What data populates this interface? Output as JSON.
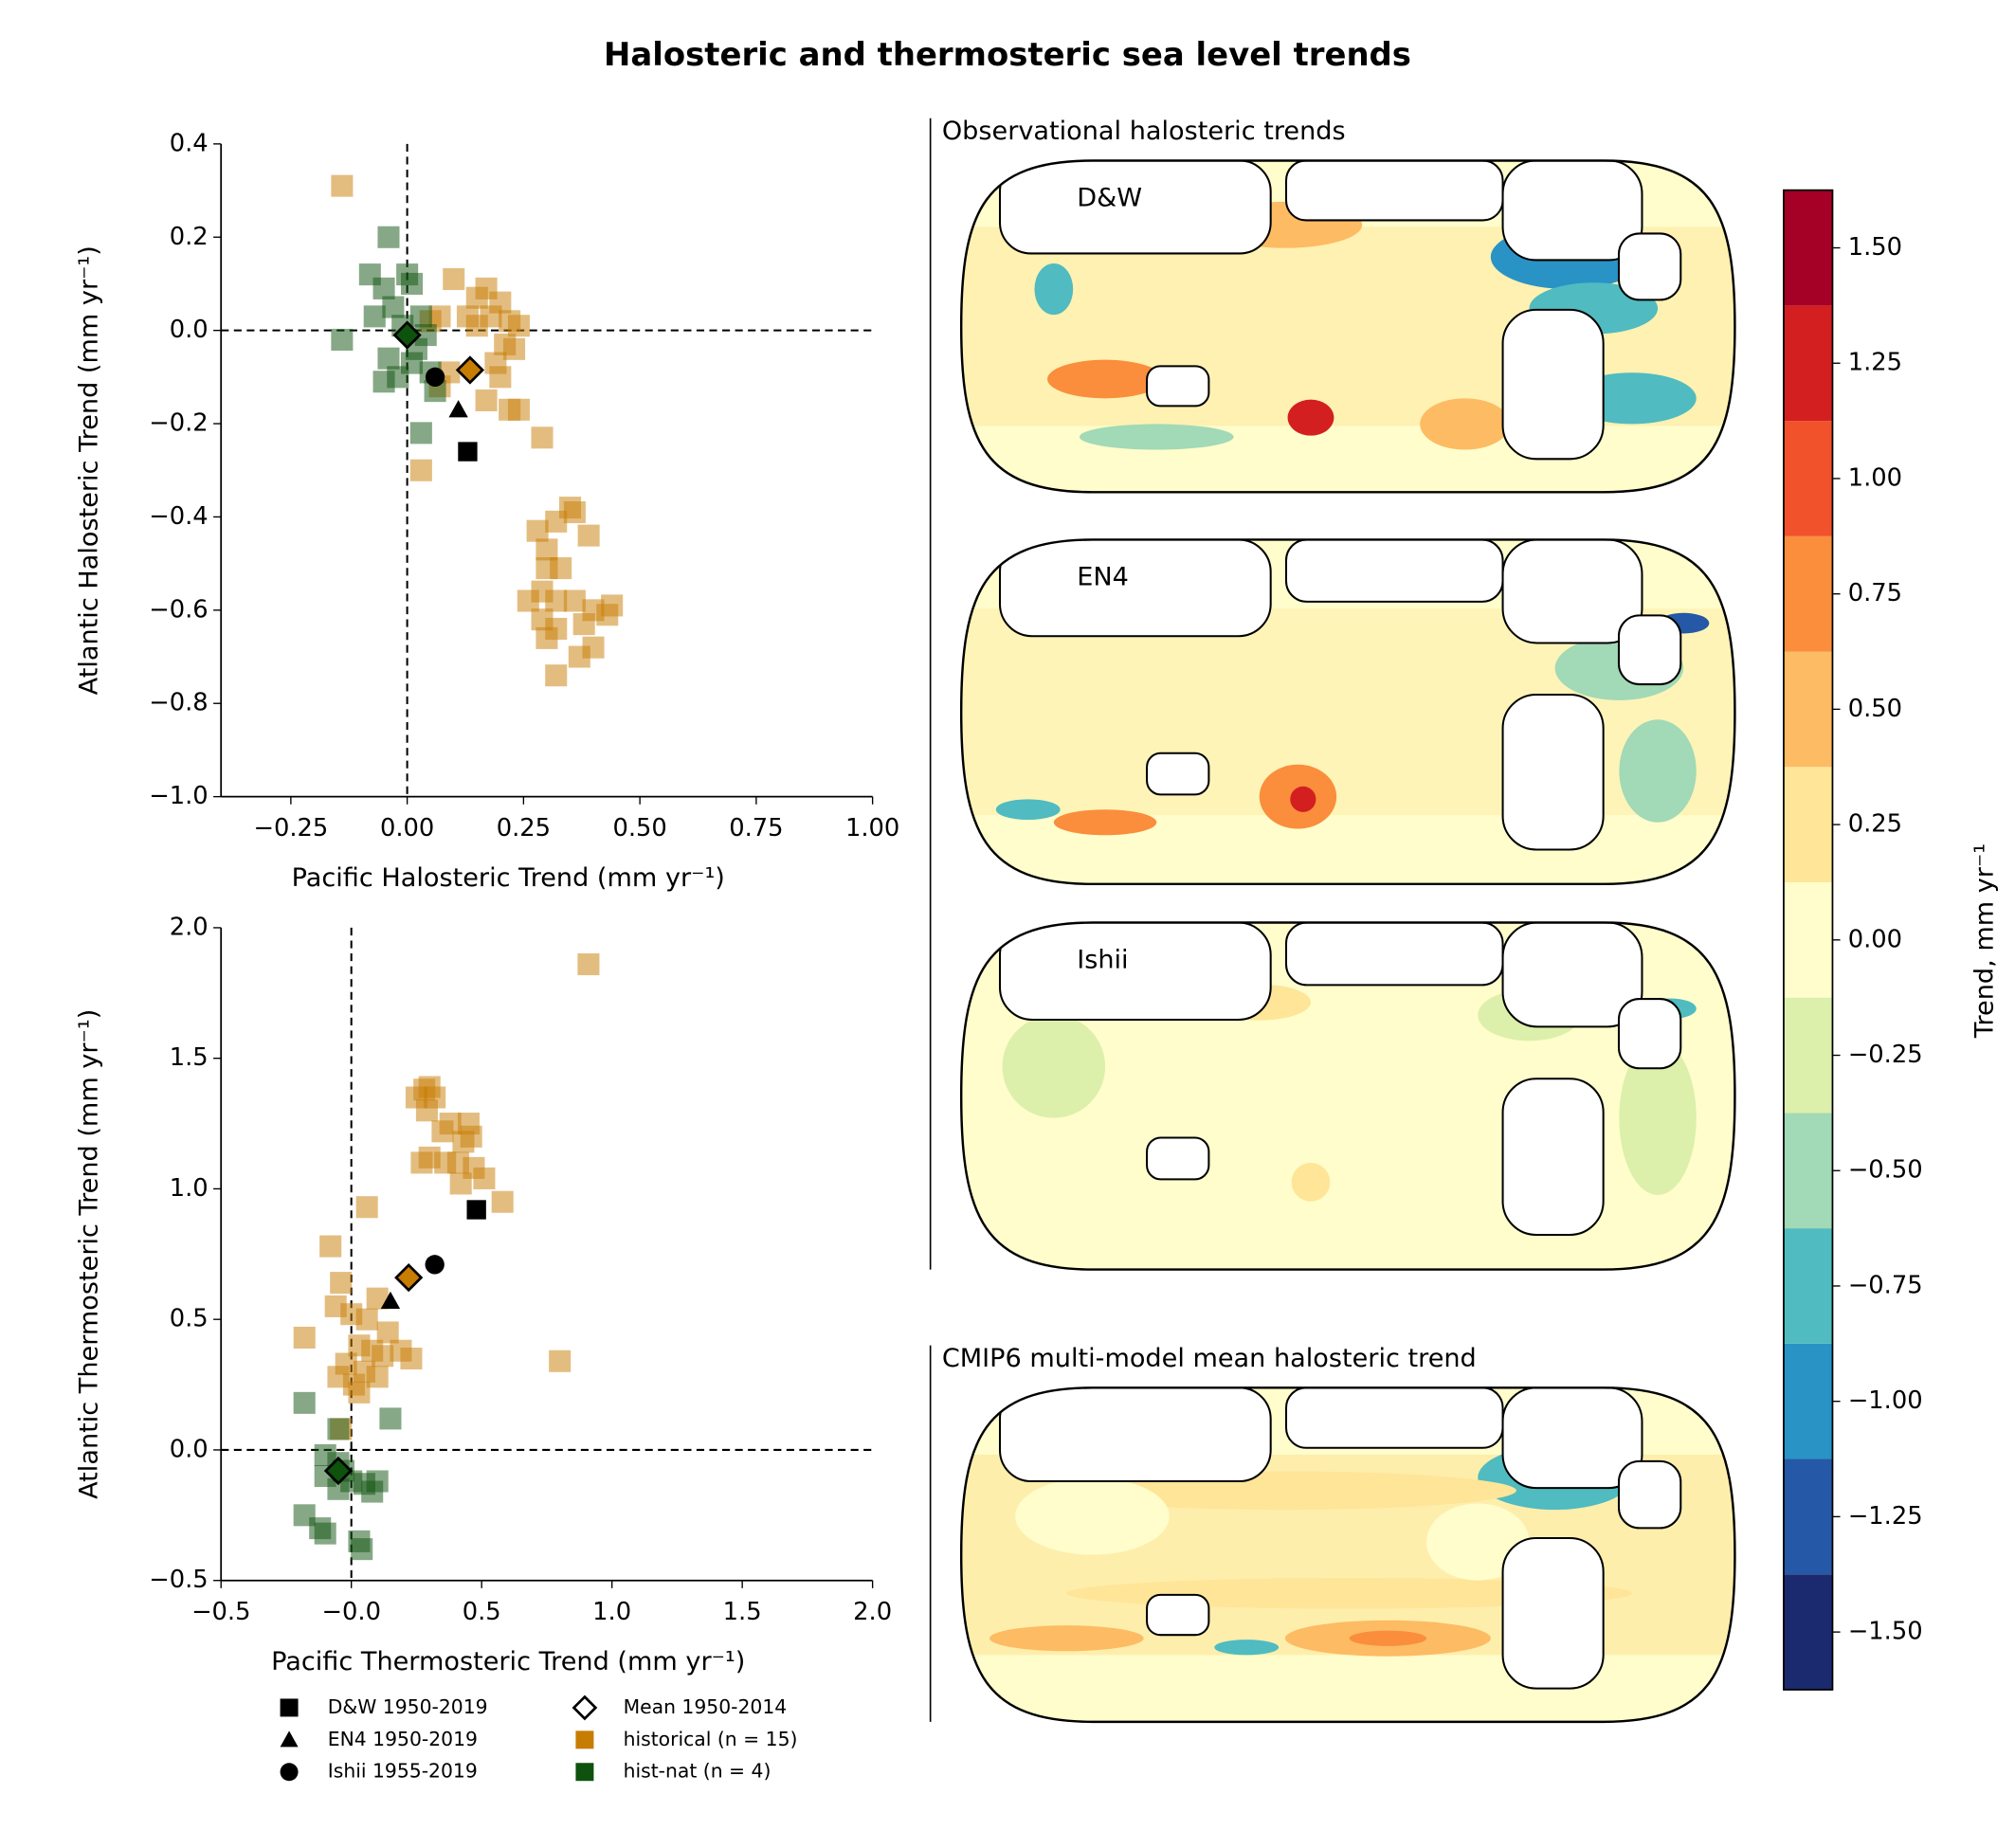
{
  "title": "Halosteric and thermosteric sea level trends",
  "maps": {
    "title_obs": "Observational halosteric trends",
    "title_model": "CMIP6 multi-model mean halosteric trend",
    "labels": [
      "D&W",
      "EN4",
      "Ishii"
    ]
  },
  "chart_data": [
    {
      "type": "scatter",
      "xlabel": "Pacific Halosteric Trend (mm yr⁻¹)",
      "ylabel": "Atlantic Halosteric Trend (mm yr⁻¹)",
      "xlim": [
        -0.4,
        1.0
      ],
      "ylim": [
        -1.0,
        0.4
      ],
      "xticks": [
        {
          "value": -0.25,
          "label": "−0.25"
        },
        {
          "value": 0,
          "label": "0.00"
        },
        {
          "value": 0.25,
          "label": "0.25"
        },
        {
          "value": 0.5,
          "label": "0.50"
        },
        {
          "value": 0.75,
          "label": "0.75"
        },
        {
          "value": 1.0,
          "label": "1.00"
        }
      ],
      "yticks": [
        {
          "value": 0.4,
          "label": "0.4"
        },
        {
          "value": 0.2,
          "label": "0.2"
        },
        {
          "value": 0,
          "label": "0.0"
        },
        {
          "value": -0.2,
          "label": "−0.2"
        },
        {
          "value": -0.4,
          "label": "−0.4"
        },
        {
          "value": -0.6,
          "label": "−0.6"
        },
        {
          "value": -0.8,
          "label": "−0.8"
        },
        {
          "value": -1.0,
          "label": "−1.0"
        }
      ],
      "refline_x": 0,
      "refline_y": 0,
      "series": [
        {
          "marker": "square",
          "color": "#000000",
          "x": [
            0.13
          ],
          "y": [
            -0.26
          ]
        },
        {
          "marker": "triangle",
          "color": "#000000",
          "x": [
            0.11
          ],
          "y": [
            -0.17
          ]
        },
        {
          "marker": "circle",
          "color": "#000000",
          "x": [
            0.06
          ],
          "y": [
            -0.1
          ]
        },
        {
          "marker": "diamond",
          "color": "#ffffff",
          "point_colors": [
            "#c77c02",
            "#0d520d"
          ],
          "x": [
            0.135,
            0.0
          ],
          "y": [
            -0.085,
            -0.01
          ]
        },
        {
          "marker": "square",
          "color": "#c77c02",
          "alpha": 0.5,
          "x": [
            -0.14,
            0.1,
            0.15,
            0.17,
            0.2,
            0.13,
            0.18,
            0.07,
            0.05,
            0.22,
            0.24,
            0.15,
            0.21,
            0.23,
            0.19,
            0.2,
            0.09,
            0.07,
            0.17,
            0.22,
            0.24,
            0.29,
            0.03,
            0.28,
            0.32,
            0.35,
            0.36,
            0.3,
            0.39,
            0.3,
            0.33,
            0.26,
            0.29,
            0.32,
            0.36,
            0.4,
            0.43,
            0.44,
            0.29,
            0.32,
            0.38,
            0.4,
            0.37,
            0.32,
            0.3
          ],
          "y": [
            0.31,
            0.11,
            0.07,
            0.09,
            0.06,
            0.03,
            0.03,
            0.03,
            0.02,
            0.02,
            0.01,
            0.01,
            -0.03,
            -0.04,
            -0.07,
            -0.1,
            -0.09,
            -0.12,
            -0.15,
            -0.17,
            -0.17,
            -0.23,
            -0.3,
            -0.43,
            -0.41,
            -0.38,
            -0.39,
            -0.47,
            -0.44,
            -0.51,
            -0.51,
            -0.58,
            -0.56,
            -0.58,
            -0.58,
            -0.6,
            -0.61,
            -0.59,
            -0.62,
            -0.64,
            -0.63,
            -0.68,
            -0.7,
            -0.74,
            -0.66
          ]
        },
        {
          "marker": "square",
          "color": "#0d520d",
          "alpha": 0.5,
          "x": [
            -0.04,
            -0.08,
            0.0,
            0.01,
            -0.05,
            -0.03,
            -0.07,
            -0.14,
            0.03,
            -0.01,
            0.04,
            0.02,
            -0.04,
            0.01,
            -0.05,
            0.05,
            0.06,
            0.03,
            -0.02
          ],
          "y": [
            0.2,
            0.12,
            0.12,
            0.1,
            0.09,
            0.05,
            0.03,
            -0.02,
            0.03,
            0.01,
            -0.01,
            -0.04,
            -0.06,
            -0.07,
            -0.11,
            -0.09,
            -0.13,
            -0.22,
            -0.1
          ]
        }
      ]
    },
    {
      "type": "scatter",
      "xlabel": "Pacific Thermosteric Trend (mm yr⁻¹)",
      "ylabel": "Atlantic Thermosteric Trend (mm yr⁻¹)",
      "xlim": [
        -0.5,
        2.0
      ],
      "ylim": [
        -0.5,
        2.0
      ],
      "xticks": [
        {
          "value": -0.5,
          "label": "−0.5"
        },
        {
          "value": 0,
          "label": "−0.0"
        },
        {
          "value": 0.5,
          "label": "0.5"
        },
        {
          "value": 1.0,
          "label": "1.0"
        },
        {
          "value": 1.5,
          "label": "1.5"
        },
        {
          "value": 2.0,
          "label": "2.0"
        }
      ],
      "yticks": [
        {
          "value": 2.0,
          "label": "2.0"
        },
        {
          "value": 1.5,
          "label": "1.5"
        },
        {
          "value": 1.0,
          "label": "1.0"
        },
        {
          "value": 0.5,
          "label": "0.5"
        },
        {
          "value": 0,
          "label": "0.0"
        },
        {
          "value": -0.5,
          "label": "−0.5"
        }
      ],
      "refline_x": 0,
      "refline_y": 0,
      "series": [
        {
          "name": "D&W 1950-2019",
          "marker": "square",
          "color": "#000000",
          "x": [
            0.48
          ],
          "y": [
            0.92
          ]
        },
        {
          "name": "EN4 1950-2019",
          "marker": "triangle",
          "color": "#000000",
          "x": [
            0.15
          ],
          "y": [
            0.57
          ]
        },
        {
          "name": "Ishii 1955-2019",
          "marker": "circle",
          "color": "#000000",
          "x": [
            0.32
          ],
          "y": [
            0.71
          ]
        },
        {
          "name": "Mean 1950-2014",
          "marker": "diamond",
          "color": "#ffffff",
          "point_colors": [
            "#c77c02",
            "#0d520d"
          ],
          "x": [
            0.22,
            -0.05
          ],
          "y": [
            0.66,
            -0.08
          ]
        },
        {
          "name": "historical (n = 15)",
          "marker": "square",
          "color": "#c77c02",
          "alpha": 0.5,
          "x": [
            0.91,
            0.25,
            0.28,
            0.3,
            0.32,
            0.29,
            0.38,
            0.45,
            0.35,
            0.43,
            0.46,
            0.27,
            0.3,
            0.36,
            0.41,
            0.47,
            0.51,
            0.42,
            0.58,
            0.06,
            -0.08,
            -0.04,
            0.8,
            -0.18,
            -0.06,
            0.0,
            0.06,
            0.1,
            0.03,
            0.08,
            0.14,
            0.19,
            0.23,
            -0.02,
            0.05,
            0.1,
            -0.05,
            0.01,
            0.12,
            -0.04,
            0.03
          ],
          "y": [
            1.86,
            1.35,
            1.38,
            1.39,
            1.35,
            1.3,
            1.25,
            1.25,
            1.22,
            1.18,
            1.2,
            1.1,
            1.12,
            1.1,
            1.1,
            1.08,
            1.04,
            1.02,
            0.95,
            0.93,
            0.78,
            0.64,
            0.34,
            0.43,
            0.55,
            0.52,
            0.5,
            0.58,
            0.4,
            0.38,
            0.45,
            0.38,
            0.35,
            0.33,
            0.3,
            0.28,
            0.28,
            0.25,
            0.36,
            0.08,
            0.22
          ]
        },
        {
          "name": "hist-nat (n = 4)",
          "marker": "square",
          "color": "#0d520d",
          "alpha": 0.5,
          "x": [
            -0.18,
            0.15,
            -0.05,
            -0.1,
            -0.05,
            -0.1,
            -0.05,
            0.0,
            0.05,
            0.1,
            0.08,
            -0.18,
            -0.12,
            -0.1,
            0.03,
            0.04,
            -0.03
          ],
          "y": [
            0.18,
            0.12,
            0.08,
            -0.02,
            -0.05,
            -0.1,
            -0.15,
            -0.12,
            -0.13,
            -0.12,
            -0.16,
            -0.25,
            -0.3,
            -0.32,
            -0.35,
            -0.38,
            -0.08
          ]
        }
      ]
    },
    {
      "type": "colorbar",
      "label": "Trend, mm yr⁻¹",
      "ylim": [
        -1.625,
        1.625
      ],
      "bounds": [
        -1.625,
        -1.375,
        -1.125,
        -0.875,
        -0.625,
        -0.375,
        -0.125,
        0.125,
        0.375,
        0.625,
        0.875,
        1.125,
        1.375,
        1.625
      ],
      "colors": [
        "#1b2a6e",
        "#2558a6",
        "#2a93c5",
        "#50bbc0",
        "#a2d9b6",
        "#dcefab",
        "#fefdcb",
        "#fee598",
        "#fdbb63",
        "#fa8e3c",
        "#f1512b",
        "#d31f20",
        "#a50026"
      ],
      "yticks": [
        {
          "value": 1.5,
          "label": "1.50"
        },
        {
          "value": 1.25,
          "label": "1.25"
        },
        {
          "value": 1.0,
          "label": "1.00"
        },
        {
          "value": 0.75,
          "label": "0.75"
        },
        {
          "value": 0.5,
          "label": "0.50"
        },
        {
          "value": 0.25,
          "label": "0.25"
        },
        {
          "value": 0,
          "label": "0.00"
        },
        {
          "value": -0.25,
          "label": "−0.25"
        },
        {
          "value": -0.5,
          "label": "−0.50"
        },
        {
          "value": -0.75,
          "label": "−0.75"
        },
        {
          "value": -1.0,
          "label": "−1.00"
        },
        {
          "value": -1.25,
          "label": "−1.25"
        },
        {
          "value": -1.5,
          "label": "−1.50"
        }
      ]
    }
  ]
}
